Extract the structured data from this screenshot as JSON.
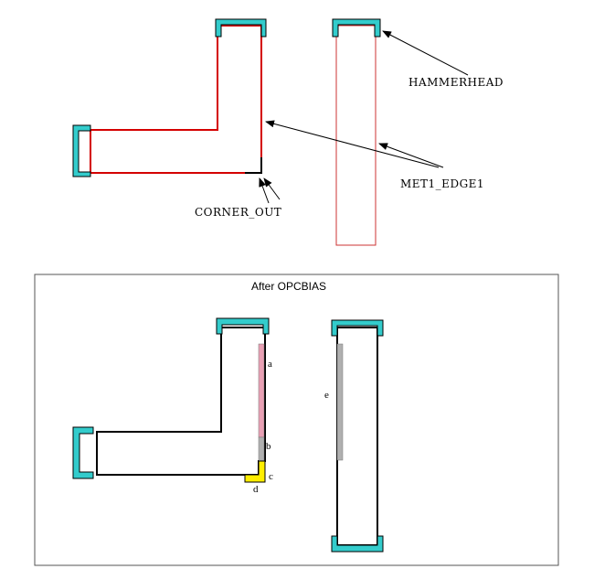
{
  "labels": {
    "hammerhead": "HAMMERHEAD",
    "met1_edge1": "MET1_EDGE1",
    "corner_out": "CORNER_OUT"
  },
  "panel": {
    "title": "After OPCBIAS"
  },
  "edge_labels": {
    "a": "a",
    "b": "b",
    "c": "c",
    "d": "d",
    "e": "e"
  },
  "colors": {
    "hammerhead_fill": "#33cccc",
    "edge_highlight": "#d40000",
    "thin_outline": "#cc3333",
    "bias_pink": "#e8a0b4",
    "bias_gray": "#b0b0b0",
    "bias_yellow": "#ffee00"
  }
}
